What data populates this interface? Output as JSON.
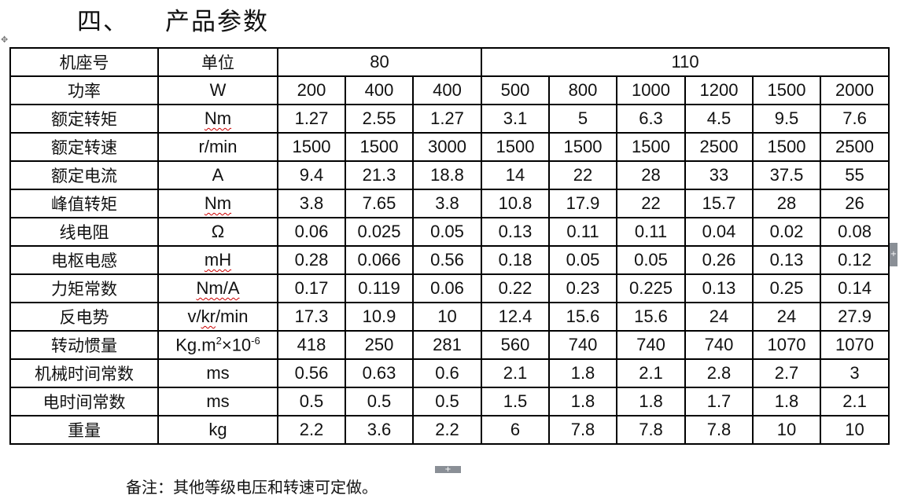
{
  "title": {
    "number": "四、",
    "text": "产品参数"
  },
  "table": {
    "header": {
      "label": "机座号",
      "unit": "单位",
      "group_80": "80",
      "group_110": "110"
    },
    "rows": [
      {
        "label": "功率",
        "unit": "W",
        "values": [
          "200",
          "400",
          "400",
          "500",
          "800",
          "1000",
          "1200",
          "1500",
          "2000"
        ]
      },
      {
        "label": "额定转矩",
        "unit": "Nm",
        "values": [
          "1.27",
          "2.55",
          "1.27",
          "3.1",
          "5",
          "6.3",
          "4.5",
          "9.5",
          "7.6"
        ]
      },
      {
        "label": "额定转速",
        "unit": "r/min",
        "values": [
          "1500",
          "1500",
          "3000",
          "1500",
          "1500",
          "1500",
          "2500",
          "1500",
          "2500"
        ]
      },
      {
        "label": "额定电流",
        "unit": "A",
        "values": [
          "9.4",
          "21.3",
          "18.8",
          "14",
          "22",
          "28",
          "33",
          "37.5",
          "55"
        ]
      },
      {
        "label": "峰值转矩",
        "unit": "Nm",
        "values": [
          "3.8",
          "7.65",
          "3.8",
          "10.8",
          "17.9",
          "22",
          "15.7",
          "28",
          "26"
        ]
      },
      {
        "label": "线电阻",
        "unit": "Ω",
        "values": [
          "0.06",
          "0.025",
          "0.05",
          "0.13",
          "0.11",
          "0.11",
          "0.04",
          "0.02",
          "0.08"
        ]
      },
      {
        "label": "电枢电感",
        "unit": "mH",
        "values": [
          "0.28",
          "0.066",
          "0.56",
          "0.18",
          "0.05",
          "0.05",
          "0.26",
          "0.13",
          "0.12"
        ]
      },
      {
        "label": "力矩常数",
        "unit": "Nm/A",
        "values": [
          "0.17",
          "0.119",
          "0.06",
          "0.22",
          "0.23",
          "0.225",
          "0.13",
          "0.25",
          "0.14"
        ]
      },
      {
        "label": "反电势",
        "unit": "v/kr/min",
        "values": [
          "17.3",
          "10.9",
          "10",
          "12.4",
          "15.6",
          "15.6",
          "24",
          "24",
          "27.9"
        ]
      },
      {
        "label": "转动惯量",
        "unit_html": "Kg.m<sup>2</sup>×10<sup>-6</sup>",
        "unit": "Kg.m2×10-6",
        "values": [
          "418",
          "250",
          "281",
          "560",
          "740",
          "740",
          "740",
          "1070",
          "1070"
        ]
      },
      {
        "label": "机械时间常数",
        "unit": "ms",
        "values": [
          "0.56",
          "0.63",
          "0.6",
          "2.1",
          "1.8",
          "2.1",
          "2.8",
          "2.7",
          "3"
        ]
      },
      {
        "label": "电时间常数",
        "unit": "ms",
        "values": [
          "0.5",
          "0.5",
          "0.5",
          "1.5",
          "1.8",
          "1.8",
          "1.7",
          "1.8",
          "2.1"
        ]
      },
      {
        "label": "重量",
        "unit": "kg",
        "values": [
          "2.2",
          "3.6",
          "2.2",
          "6",
          "7.8",
          "7.8",
          "7.8",
          "10",
          "10"
        ]
      }
    ]
  },
  "note": "备注：其他等级电压和转速可定做。",
  "icons": {
    "move": "move-handle-icon",
    "add_row": "plus-icon",
    "add_column": "plus-icon"
  }
}
